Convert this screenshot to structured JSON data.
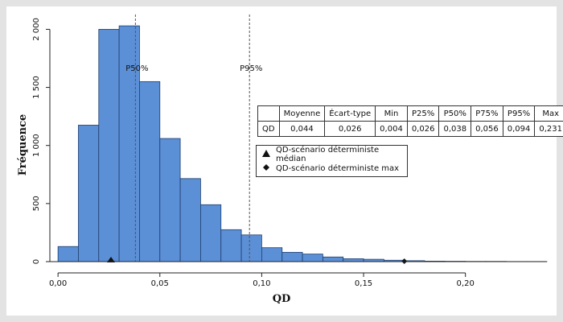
{
  "chart_data": {
    "type": "bar",
    "xlabel": "QD",
    "ylabel": "Fréquence",
    "xlim": [
      -0.004,
      0.24
    ],
    "ylim": [
      0,
      2100
    ],
    "bin_width": 0.01,
    "bins": [
      {
        "x0": 0.0,
        "x1": 0.01,
        "value": 130
      },
      {
        "x0": 0.01,
        "x1": 0.02,
        "value": 1175
      },
      {
        "x0": 0.02,
        "x1": 0.03,
        "value": 2000
      },
      {
        "x0": 0.03,
        "x1": 0.04,
        "value": 2030
      },
      {
        "x0": 0.04,
        "x1": 0.05,
        "value": 1550
      },
      {
        "x0": 0.05,
        "x1": 0.06,
        "value": 1060
      },
      {
        "x0": 0.06,
        "x1": 0.07,
        "value": 715
      },
      {
        "x0": 0.07,
        "x1": 0.08,
        "value": 490
      },
      {
        "x0": 0.08,
        "x1": 0.09,
        "value": 275
      },
      {
        "x0": 0.09,
        "x1": 0.1,
        "value": 230
      },
      {
        "x0": 0.1,
        "x1": 0.11,
        "value": 120
      },
      {
        "x0": 0.11,
        "x1": 0.12,
        "value": 80
      },
      {
        "x0": 0.12,
        "x1": 0.13,
        "value": 65
      },
      {
        "x0": 0.13,
        "x1": 0.14,
        "value": 40
      },
      {
        "x0": 0.14,
        "x1": 0.15,
        "value": 25
      },
      {
        "x0": 0.15,
        "x1": 0.16,
        "value": 20
      },
      {
        "x0": 0.16,
        "x1": 0.17,
        "value": 12
      },
      {
        "x0": 0.17,
        "x1": 0.18,
        "value": 8
      },
      {
        "x0": 0.18,
        "x1": 0.19,
        "value": 4
      },
      {
        "x0": 0.19,
        "x1": 0.2,
        "value": 3
      },
      {
        "x0": 0.2,
        "x1": 0.21,
        "value": 2
      },
      {
        "x0": 0.21,
        "x1": 0.22,
        "value": 2
      },
      {
        "x0": 0.22,
        "x1": 0.23,
        "value": 1
      },
      {
        "x0": 0.23,
        "x1": 0.24,
        "value": 1
      }
    ],
    "x_ticks": [
      {
        "value": 0.0,
        "label": "0,00"
      },
      {
        "value": 0.05,
        "label": "0,05"
      },
      {
        "value": 0.1,
        "label": "0,10"
      },
      {
        "value": 0.15,
        "label": "0,15"
      },
      {
        "value": 0.2,
        "label": "0,20"
      }
    ],
    "y_ticks": [
      {
        "value": 0,
        "label": "0"
      },
      {
        "value": 500,
        "label": "500"
      },
      {
        "value": 1000,
        "label": "1 000"
      },
      {
        "value": 1500,
        "label": "1 500"
      },
      {
        "value": 2000,
        "label": "2 000"
      }
    ],
    "reference_lines": [
      {
        "x": 0.038,
        "label": "P50%"
      },
      {
        "x": 0.094,
        "label": "P95%"
      }
    ],
    "markers": [
      {
        "x": 0.026,
        "shape": "triangle",
        "label": "QD-scénario déterministe médian"
      },
      {
        "x": 0.17,
        "shape": "diamond",
        "label": "QD-scénario déterministe max"
      }
    ],
    "colors": {
      "bar_fill": "#5b8fd6",
      "bar_stroke": "#1f3f6e",
      "frame_bg": "#e3e3e3",
      "ref_line": "#555555"
    }
  },
  "stats_table": {
    "headers": [
      "",
      "Moyenne",
      "Écart-type",
      "Min",
      "P25%",
      "P50%",
      "P75%",
      "P95%",
      "Max"
    ],
    "row": [
      "QD",
      "0,044",
      "0,026",
      "0,004",
      "0,026",
      "0,038",
      "0,056",
      "0,094",
      "0,231"
    ]
  },
  "legend": {
    "items": [
      {
        "shape": "triangle",
        "label": "QD-scénario déterministe médian"
      },
      {
        "shape": "diamond",
        "label": "QD-scénario déterministe max"
      }
    ]
  }
}
